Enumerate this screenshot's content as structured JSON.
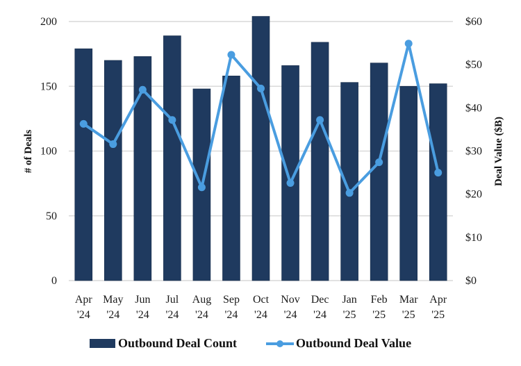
{
  "chart_data": {
    "type": "bar",
    "title": "",
    "categories": [
      [
        "Apr",
        "'24"
      ],
      [
        "May",
        "'24"
      ],
      [
        "Jun",
        "'24"
      ],
      [
        "Jul",
        "'24"
      ],
      [
        "Aug",
        "'24"
      ],
      [
        "Sep",
        "'24"
      ],
      [
        "Oct",
        "'24"
      ],
      [
        "Nov",
        "'24"
      ],
      [
        "Dec",
        "'24"
      ],
      [
        "Jan",
        "'25"
      ],
      [
        "Feb",
        "'25"
      ],
      [
        "Mar",
        "'25"
      ],
      [
        "Apr",
        "'25"
      ]
    ],
    "series": [
      {
        "name": "Outbound Deal Count",
        "type": "bar",
        "axis": "left",
        "color": "#1f3a5f",
        "values": [
          179,
          170,
          173,
          189,
          148,
          158,
          204,
          166,
          184,
          153,
          168,
          150,
          152
        ]
      },
      {
        "name": "Outbound Deal Value",
        "type": "line",
        "axis": "right",
        "color": "#4a9de0",
        "values": [
          36.3,
          31.6,
          44.2,
          37.2,
          21.6,
          52.3,
          44.5,
          22.6,
          37.2,
          20.3,
          27.4,
          54.9,
          25.0
        ]
      }
    ],
    "left_axis": {
      "label": "# of Deals",
      "ylim": [
        0,
        200
      ],
      "ticks": [
        0,
        50,
        100,
        150,
        200
      ],
      "tick_labels": [
        "0",
        "50",
        "100",
        "150",
        "200"
      ]
    },
    "right_axis": {
      "label": "Deal Value ($B)",
      "ylim": [
        0,
        60
      ],
      "ticks": [
        0,
        10,
        20,
        30,
        40,
        50,
        60
      ],
      "tick_labels": [
        "$0",
        "$10",
        "$20",
        "$30",
        "$40",
        "$50",
        "$60"
      ]
    },
    "grid": true,
    "gridline_color": "#d9d9d9",
    "legend_position": "bottom"
  }
}
